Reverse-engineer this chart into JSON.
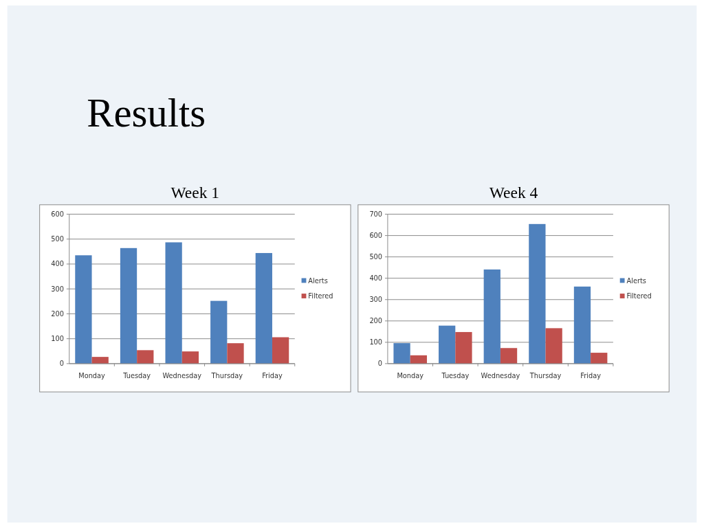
{
  "chart_data": [
    {
      "type": "bar",
      "title": "Week 1",
      "annotations": [
        "Results"
      ],
      "categories": [
        "Monday",
        "Tuesday",
        "Wednesday",
        "Thursday",
        "Friday"
      ],
      "series": [
        {
          "name": "Alerts",
          "color": "#4f81bd",
          "values": [
            435,
            464,
            487,
            252,
            444
          ]
        },
        {
          "name": "Filtered",
          "color": "#c0504d",
          "values": [
            27,
            54,
            49,
            82,
            106
          ]
        }
      ],
      "ylim": [
        0,
        600
      ],
      "yticks": [
        0,
        100,
        200,
        300,
        400,
        500,
        600
      ],
      "grid": "y",
      "legend": "right"
    },
    {
      "type": "bar",
      "title": "Week 4",
      "categories": [
        "Monday",
        "Tuesday",
        "Wednesday",
        "Thursday",
        "Friday"
      ],
      "series": [
        {
          "name": "Alerts",
          "color": "#4f81bd",
          "values": [
            96,
            178,
            441,
            654,
            361
          ]
        },
        {
          "name": "Filtered",
          "color": "#c0504d",
          "values": [
            39,
            148,
            73,
            166,
            51
          ]
        }
      ],
      "ylim": [
        0,
        700
      ],
      "yticks": [
        0,
        100,
        200,
        300,
        400,
        500,
        600,
        700
      ],
      "grid": "y",
      "legend": "right"
    }
  ]
}
